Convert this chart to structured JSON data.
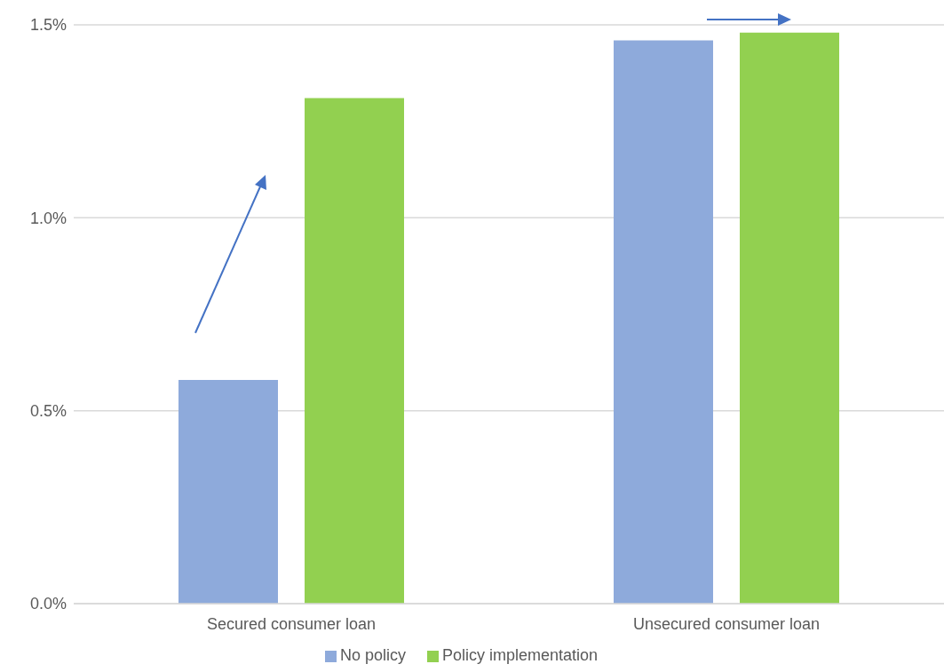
{
  "chart_data": {
    "type": "bar",
    "categories": [
      "Secured consumer loan",
      "Unsecured consumer loan"
    ],
    "series": [
      {
        "name": "No policy",
        "color": "#8eaadb",
        "values": [
          0.58,
          1.46
        ]
      },
      {
        "name": "Policy implementation",
        "color": "#92d050",
        "values": [
          1.31,
          1.48
        ]
      }
    ],
    "ylim": [
      0,
      1.5
    ],
    "yticks": [
      {
        "value": 0,
        "label": "0.0%"
      },
      {
        "value": 0.5,
        "label": "0.5%"
      },
      {
        "value": 1,
        "label": "1.0%"
      },
      {
        "value": 1.5,
        "label": "1.5%"
      }
    ],
    "grid": "y",
    "legend": "bottom"
  }
}
